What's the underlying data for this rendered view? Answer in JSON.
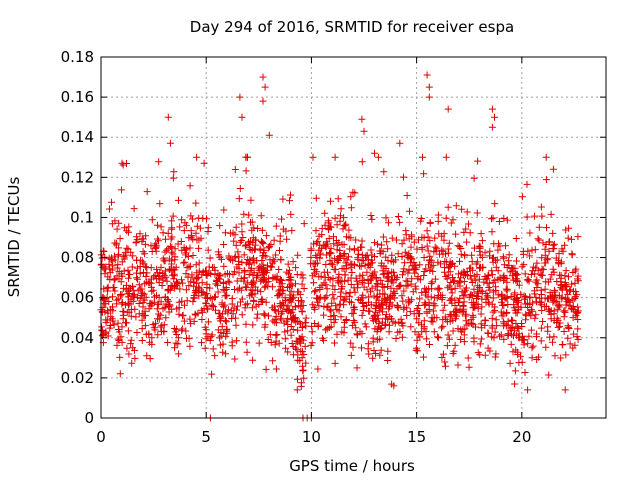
{
  "chart_data": {
    "type": "scatter",
    "title": "Day 294 of 2016, SRMTID for receiver espa",
    "xlabel": "GPS time / hours",
    "ylabel": "SRMTID / TECUs",
    "xlim": [
      0,
      24
    ],
    "ylim": [
      0,
      0.18
    ],
    "grid": true,
    "marker": "+",
    "x_ticks": [
      0,
      5,
      10,
      15,
      20
    ],
    "x_tick_labels": [
      "0",
      "5",
      "10",
      "15",
      "20"
    ],
    "y_ticks": [
      0,
      0.02,
      0.04,
      0.06,
      0.08,
      0.1,
      0.12,
      0.14,
      0.16,
      0.18
    ],
    "y_tick_labels": [
      "0",
      "0.02",
      "0.04",
      "0.06",
      "0.08",
      "0.1",
      "0.12",
      "0.14",
      "0.16",
      "0.18"
    ],
    "series": [
      {
        "name": "SRMTID",
        "color": "#e00000",
        "description": "dense cloud of ~2500 points, 0 to ~22.7 h, mostly 0.03-0.10 TECU with spikes up to ~0.17",
        "envelope": {
          "x": [
            0,
            1,
            2,
            3,
            4,
            5,
            6,
            7,
            8,
            9,
            9.7,
            10,
            11,
            12,
            13,
            14,
            15,
            16,
            17,
            18,
            19,
            20,
            21,
            22,
            22.7
          ],
          "mean": [
            0.062,
            0.068,
            0.063,
            0.07,
            0.072,
            0.065,
            0.062,
            0.07,
            0.068,
            0.055,
            0.045,
            0.065,
            0.07,
            0.068,
            0.062,
            0.065,
            0.066,
            0.068,
            0.06,
            0.066,
            0.062,
            0.055,
            0.068,
            0.06,
            0.055
          ],
          "spread": [
            0.015,
            0.018,
            0.016,
            0.018,
            0.017,
            0.016,
            0.016,
            0.018,
            0.017,
            0.015,
            0.014,
            0.016,
            0.018,
            0.017,
            0.016,
            0.016,
            0.017,
            0.018,
            0.016,
            0.017,
            0.016,
            0.015,
            0.018,
            0.016,
            0.015
          ]
        },
        "spikes": [
          [
            3.2,
            0.15
          ],
          [
            3.3,
            0.137
          ],
          [
            6.6,
            0.16
          ],
          [
            6.7,
            0.15
          ],
          [
            7.7,
            0.17
          ],
          [
            7.8,
            0.165
          ],
          [
            7.7,
            0.158
          ],
          [
            8.0,
            0.141
          ],
          [
            15.5,
            0.171
          ],
          [
            15.6,
            0.165
          ],
          [
            15.6,
            0.16
          ],
          [
            16.5,
            0.154
          ],
          [
            18.6,
            0.154
          ],
          [
            18.7,
            0.15
          ],
          [
            18.6,
            0.145
          ],
          [
            12.4,
            0.149
          ],
          [
            12.5,
            0.143
          ],
          [
            14.2,
            0.137
          ],
          [
            21.5,
            0.124
          ],
          [
            4.9,
            0.127
          ],
          [
            1.0,
            0.127
          ],
          [
            13.0,
            0.132
          ]
        ],
        "zero_points": [
          5.2,
          9.6,
          9.8,
          10.0
        ]
      }
    ]
  }
}
